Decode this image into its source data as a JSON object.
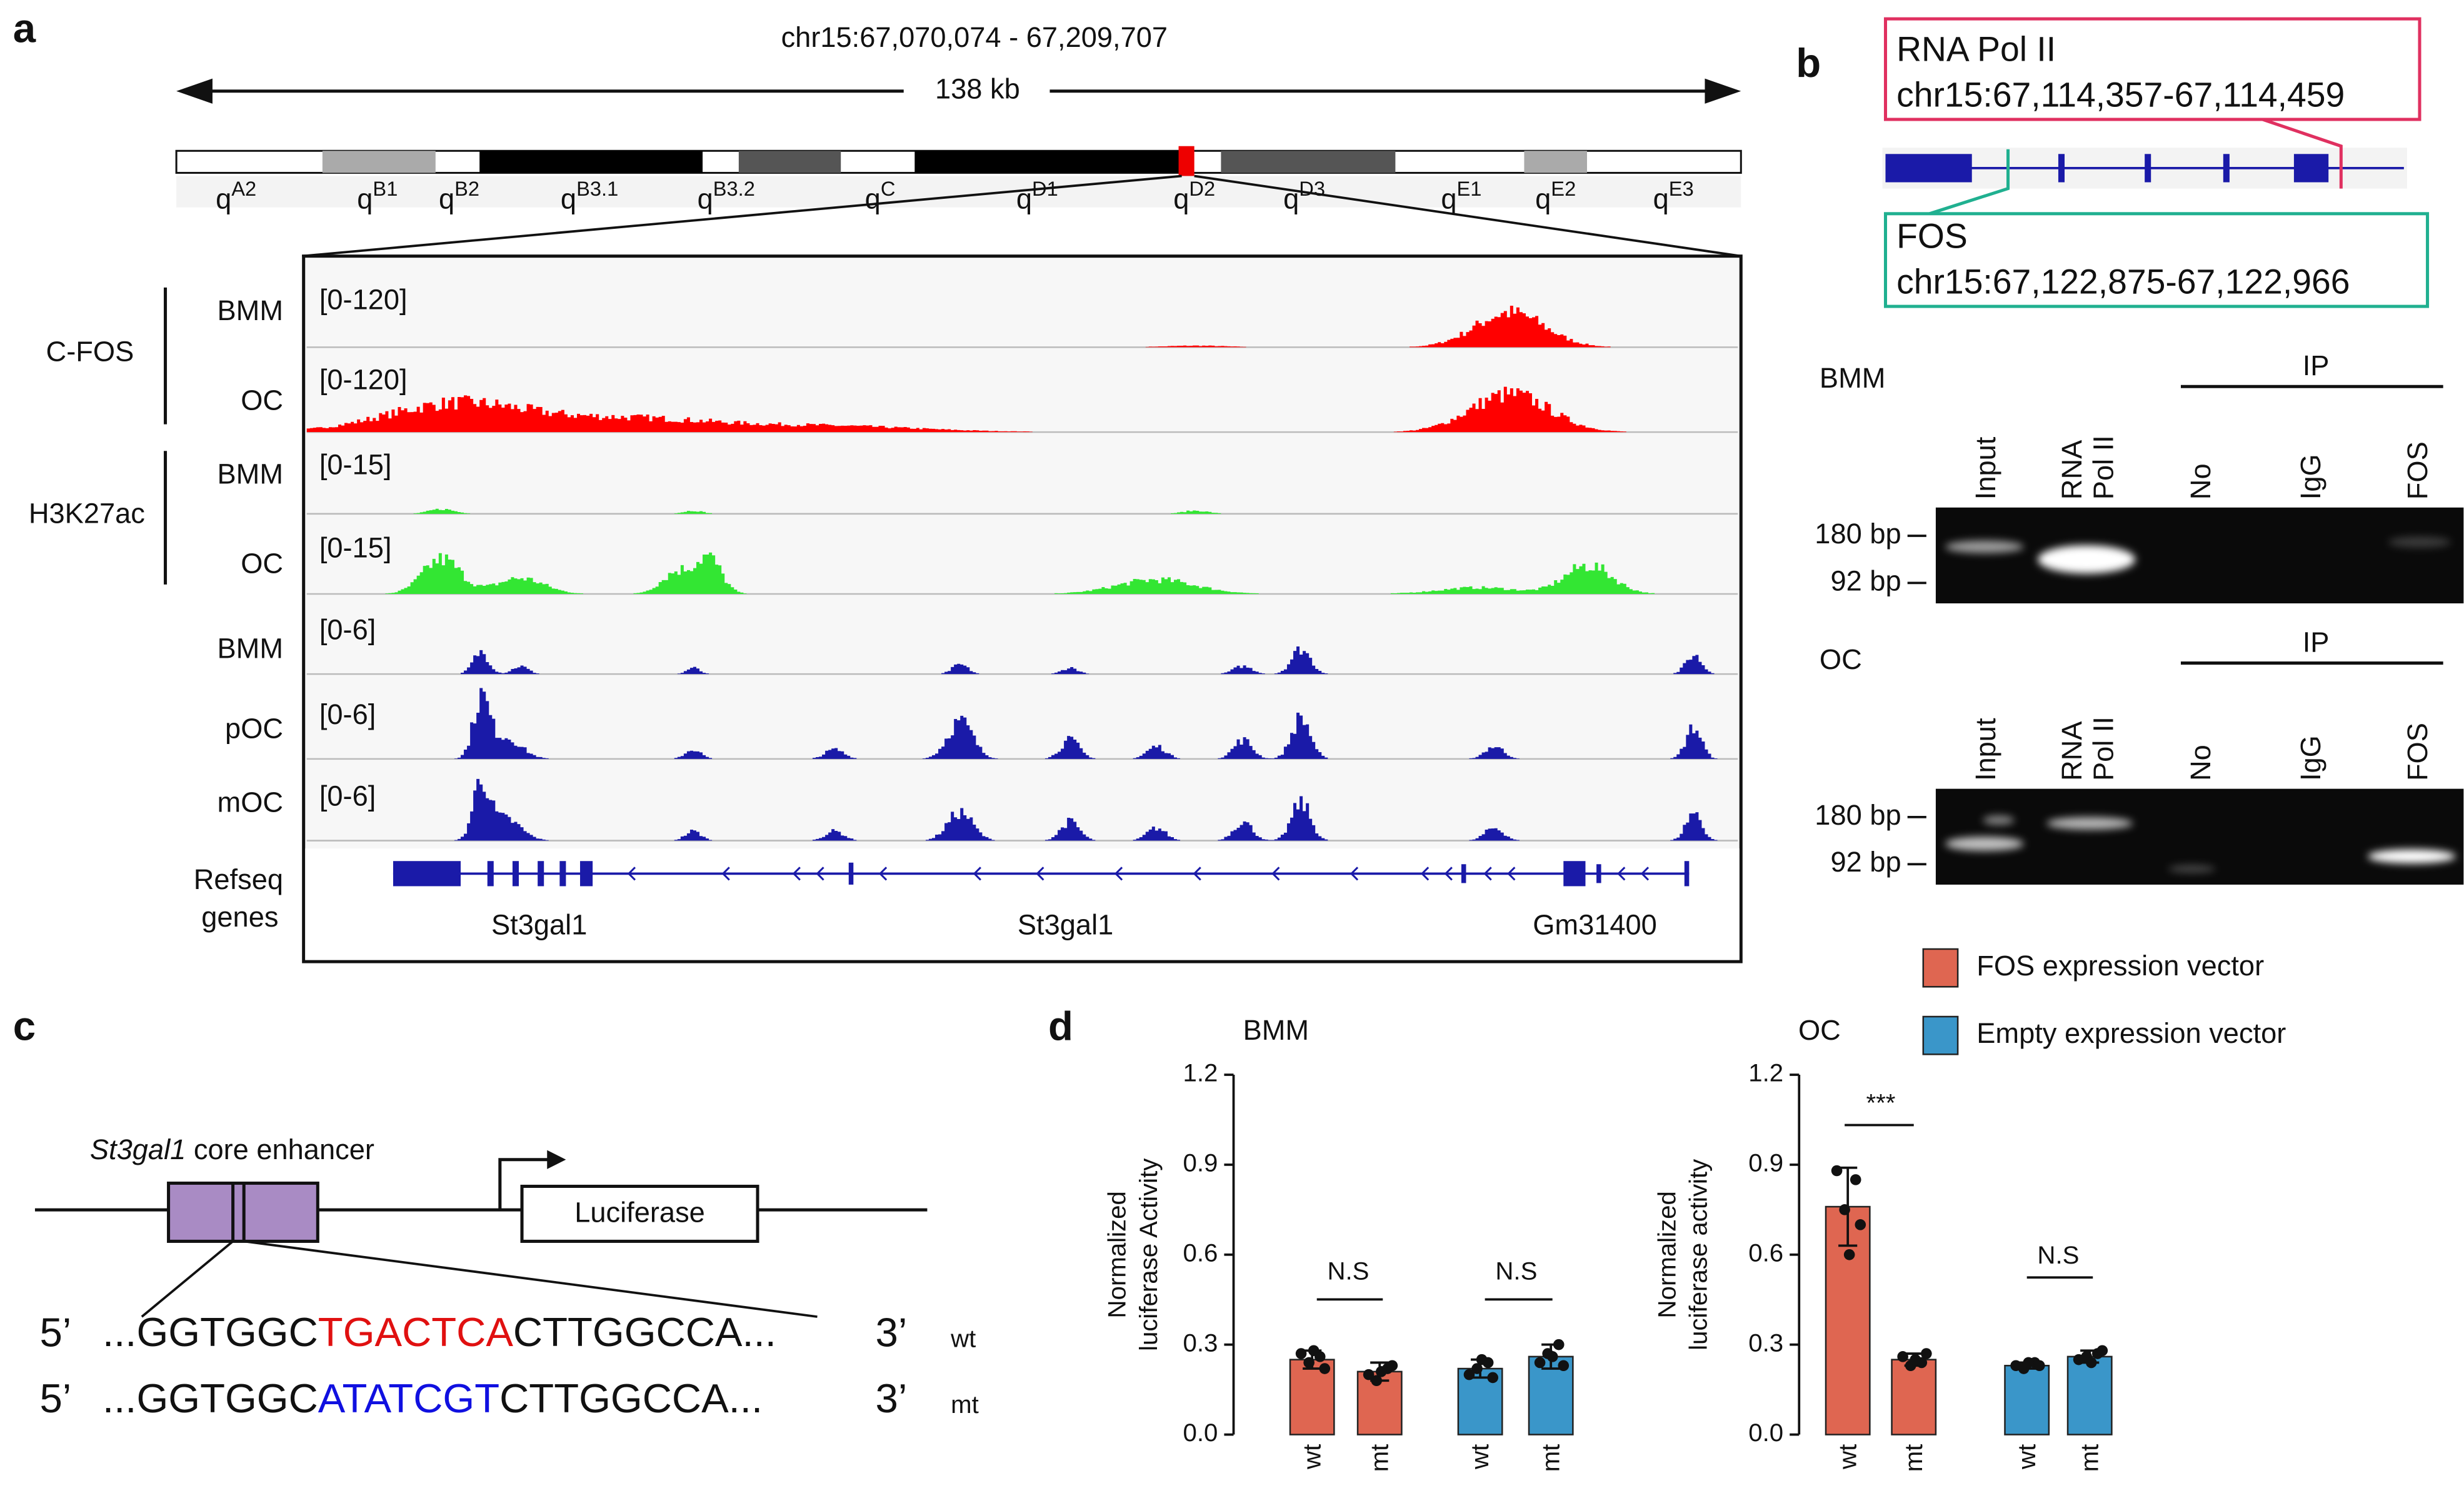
{
  "panel_labels": [
    "a",
    "b",
    "c",
    "d"
  ],
  "a": {
    "region": "chr15:67,070,074 - 67,209,707",
    "span": "138 kb",
    "bands": [
      {
        "main": "q",
        "sup": "A2"
      },
      {
        "main": "q",
        "sup": "B1"
      },
      {
        "main": "q",
        "sup": "B2"
      },
      {
        "main": "q",
        "sup": "B3.1"
      },
      {
        "main": "q",
        "sup": "B3.2"
      },
      {
        "main": "q",
        "sup": "C"
      },
      {
        "main": "q",
        "sup": "D1"
      },
      {
        "main": "q",
        "sup": "D2"
      },
      {
        "main": "q",
        "sup": "D3"
      },
      {
        "main": "q",
        "sup": "E1"
      },
      {
        "main": "q",
        "sup": "E2"
      },
      {
        "main": "q",
        "sup": "E3"
      }
    ],
    "groups": [
      "C-FOS",
      "H3K27ac"
    ],
    "tracks": [
      {
        "name": "BMM",
        "range": "[0-120]"
      },
      {
        "name": "OC",
        "range": "[0-120]"
      },
      {
        "name": "BMM",
        "range": "[0-15]"
      },
      {
        "name": "OC",
        "range": "[0-15]"
      },
      {
        "name": "BMM",
        "range": "[0-6]"
      },
      {
        "name": "pOC",
        "range": "[0-6]"
      },
      {
        "name": "mOC",
        "range": "[0-6]"
      }
    ],
    "refseq": [
      "Refseq",
      "genes"
    ],
    "genes": [
      "St3gal1",
      "St3gal1",
      "Gm31400"
    ]
  },
  "b": {
    "pol2": {
      "name": "RNA Pol II",
      "coords": "chr15:67,114,357-67,114,459"
    },
    "fos": {
      "name": "FOS",
      "coords": "chr15:67,122,875-67,122,966"
    },
    "gels": [
      {
        "cell": "BMM",
        "ip": "IP",
        "lanes": [
          "Input",
          [
            "RNA",
            "Pol II"
          ],
          "No",
          "IgG",
          "FOS"
        ],
        "markers": [
          "180 bp",
          "92 bp"
        ]
      },
      {
        "cell": "OC",
        "ip": "IP",
        "lanes": [
          "Input",
          [
            "RNA",
            "Pol II"
          ],
          "No",
          "IgG",
          "FOS"
        ],
        "markers": [
          "180 bp",
          "92 bp"
        ]
      }
    ]
  },
  "c": {
    "enhancer_gene": "St3gal1",
    "enhancer_rest": "core enhancer",
    "reporter": "Luciferase",
    "sequences": [
      {
        "five": "5’",
        "left": "...GGTGGC",
        "site": "TGACTCA",
        "right": "CTTGGCCA...",
        "three": "3’",
        "tag": "wt"
      },
      {
        "five": "5’",
        "left": "...GGTGGC",
        "site": "ATATCGT",
        "right": "CTTGGCCA...",
        "three": "3’",
        "tag": "mt"
      }
    ]
  },
  "chart_data": [
    {
      "type": "bar",
      "title": "BMM",
      "y_label": [
        "Normalized",
        "luciferase Activity"
      ],
      "categories": [
        "wt",
        "mt",
        "wt",
        "mt"
      ],
      "series": [
        {
          "name": "FOS expression vector",
          "color": "#df6651",
          "values": [
            0.25,
            0.21,
            null,
            null
          ],
          "errors": [
            0.03,
            0.03,
            null,
            null
          ],
          "points": [
            [
              0.27,
              0.26,
              0.24,
              0.22,
              0.28
            ],
            [
              0.2,
              0.22,
              0.18,
              0.23,
              0.21
            ],
            null,
            null
          ]
        },
        {
          "name": "Empty expression vector",
          "color": "#3a96c9",
          "values": [
            null,
            null,
            0.22,
            0.26
          ],
          "errors": [
            null,
            null,
            0.03,
            0.04
          ],
          "points": [
            null,
            null,
            [
              0.2,
              0.24,
              0.22,
              0.19,
              0.25
            ],
            [
              0.24,
              0.3,
              0.27,
              0.23,
              0.26
            ]
          ]
        }
      ],
      "ylim": [
        0,
        1.2
      ],
      "yticks": [
        {
          "value": 0,
          "label": "0.0"
        },
        0.3,
        0.6,
        0.9,
        1.2
      ],
      "annotations": [
        "N.S",
        "N.S"
      ]
    },
    {
      "type": "bar",
      "title": "OC",
      "y_label": [
        "Normalized",
        "luciferase activity"
      ],
      "categories": [
        "wt",
        "mt",
        "wt",
        "mt"
      ],
      "series": [
        {
          "color": "#df6651",
          "values": [
            0.76,
            0.25,
            null,
            null
          ],
          "errors": [
            0.13,
            0.02,
            null,
            null
          ],
          "points": [
            [
              0.88,
              0.85,
              0.75,
              0.7,
              0.6
            ],
            [
              0.26,
              0.24,
              0.23,
              0.27,
              0.25
            ],
            null,
            null
          ]
        },
        {
          "color": "#3a96c9",
          "values": [
            null,
            null,
            0.23,
            0.26
          ],
          "errors": [
            null,
            null,
            0.01,
            0.02
          ],
          "points": [
            null,
            null,
            [
              0.23,
              0.24,
              0.22,
              0.23,
              0.24
            ],
            [
              0.25,
              0.27,
              0.26,
              0.28,
              0.24
            ]
          ]
        }
      ],
      "ylim": [
        0,
        1.2
      ],
      "yticks": [
        {
          "value": 0,
          "label": "0.0"
        },
        0.3,
        0.6,
        0.9,
        1.2
      ],
      "annotations": [
        "***",
        "N.S"
      ]
    }
  ]
}
